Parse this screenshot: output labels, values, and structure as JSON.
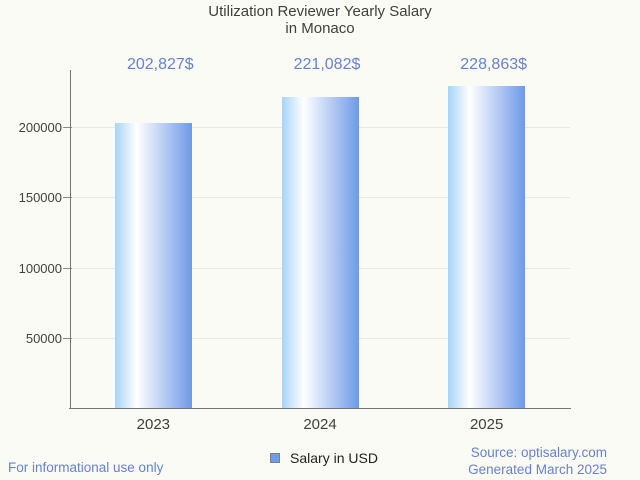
{
  "header": {
    "title_line1": "Utilization Reviewer Yearly Salary",
    "title_line2": "in Monaco"
  },
  "chart_data": {
    "type": "bar",
    "title": "Utilization Reviewer Yearly Salary in Monaco",
    "categories": [
      "2023",
      "2024",
      "2025"
    ],
    "series": [
      {
        "name": "Salary in USD",
        "values": [
          202827,
          221082,
          228863
        ]
      }
    ],
    "value_labels": [
      "202,827$",
      "221,082$",
      "228,863$"
    ],
    "xlabel": "",
    "ylabel": "",
    "y_ticks": [
      50000,
      100000,
      150000,
      200000
    ],
    "y_tick_labels": [
      "50000",
      "100000",
      "150000",
      "200000"
    ],
    "ylim": [
      0,
      240000
    ],
    "grid": true,
    "legend_position": "bottom"
  },
  "legend": {
    "label": "Salary in USD"
  },
  "footer": {
    "disclaimer": "For informational use only",
    "source": "Source: optisalary.com",
    "generated": "Generated March 2025"
  },
  "colors": {
    "background": "#fbfbf6",
    "title_text": "#404040",
    "tick_text": "#424242",
    "value_text": "#6680d4",
    "footer_text": "#6680d4",
    "axis": "#757575",
    "gridline": "#e7e7e4",
    "bar_gradient_left": "#a6d4f8",
    "bar_gradient_mid": "#ffffff",
    "bar_gradient_right": "#6e99e8",
    "legend_marker": "#6d9eeb"
  }
}
